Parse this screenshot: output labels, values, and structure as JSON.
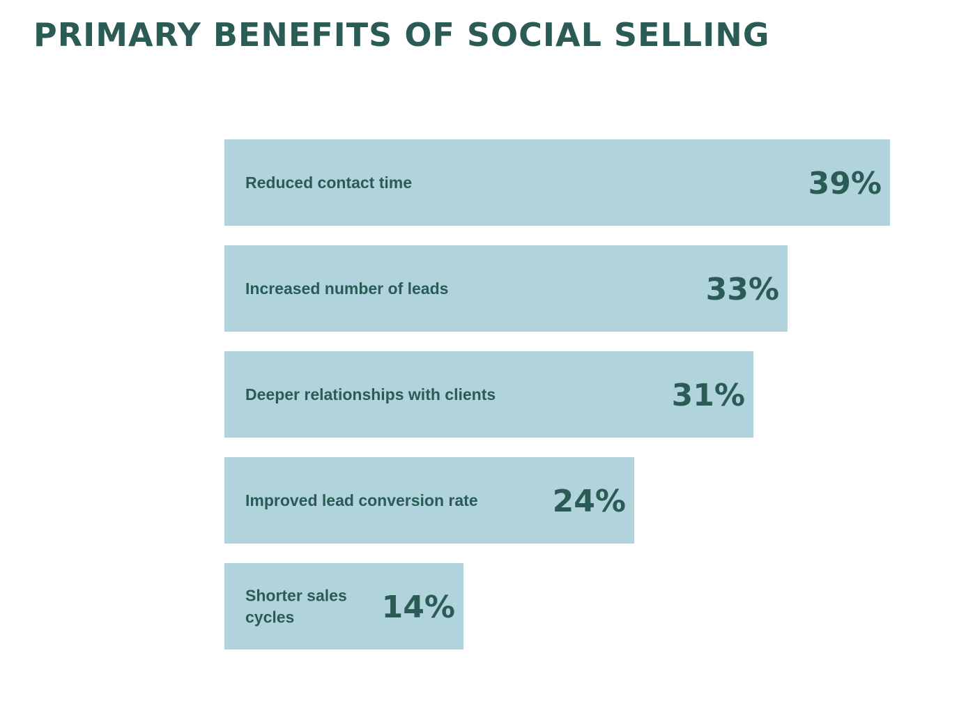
{
  "colors": {
    "bar": "#b1d3dc",
    "text": "#2b5b55",
    "background": "#ffffff"
  },
  "chart_data": {
    "type": "bar",
    "orientation": "horizontal",
    "title": "PRIMARY BENEFITS OF SOCIAL SELLING",
    "unit": "%",
    "categories": [
      "Reduced contact time",
      "Increased number of leads",
      "Deeper relationships with clients",
      "Improved lead conversion rate",
      "Shorter sales cycles"
    ],
    "values": [
      39,
      33,
      31,
      24,
      14
    ],
    "value_labels": [
      "39%",
      "33%",
      "31%",
      "24%",
      "14%"
    ],
    "xlim": [
      0,
      39
    ],
    "grid": false,
    "legend": "none"
  }
}
